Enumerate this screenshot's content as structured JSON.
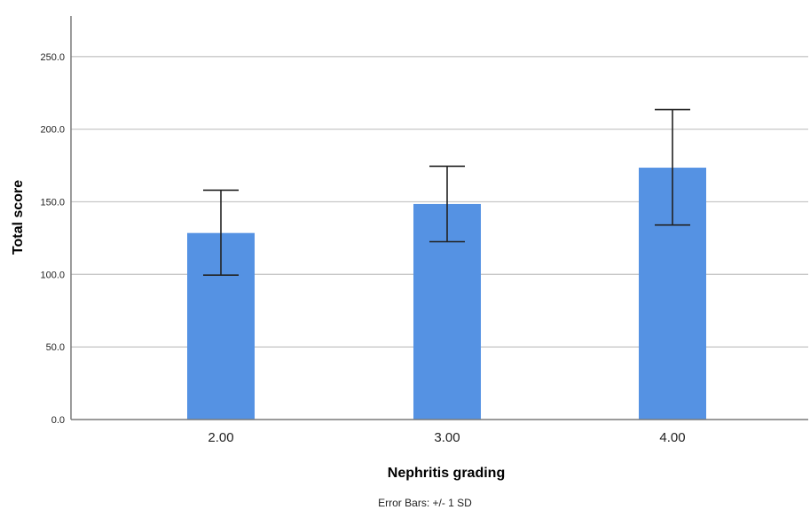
{
  "chart_data": {
    "type": "bar",
    "xlabel": "Nephritis grading",
    "ylabel": "Total score",
    "categories": [
      "2.00",
      "3.00",
      "4.00"
    ],
    "values": [
      128.5,
      148.5,
      173.5
    ],
    "error_bars": {
      "type": "+/- 1 SD",
      "lower": [
        99.5,
        122.5,
        134.0
      ],
      "upper": [
        158.0,
        174.5,
        213.5
      ]
    },
    "ylim": [
      0,
      250
    ],
    "ymax_axis": 278,
    "yticks": [
      "0.0",
      "50.0",
      "100.0",
      "150.0",
      "200.0",
      "250.0"
    ],
    "ytick_values": [
      0,
      50,
      100,
      150,
      200,
      250
    ],
    "grid": true,
    "colors": {
      "bar": "#5592e3",
      "grid": "#c8c8c8",
      "axis": "#7a7a7a",
      "error_bar": "#222222"
    }
  },
  "footnote": "Error Bars: +/- 1 SD"
}
